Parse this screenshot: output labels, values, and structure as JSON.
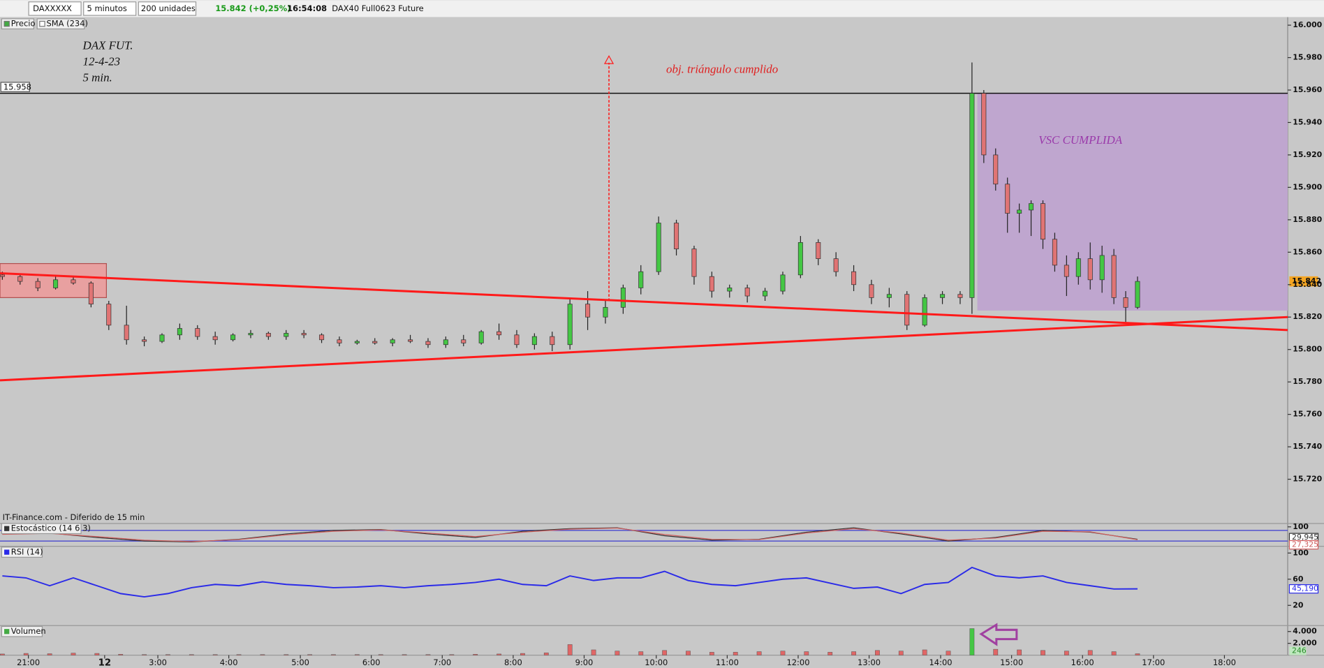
{
  "toolbar": {
    "symbol": "DAXXXXX",
    "interval": "5 minutos",
    "units": "200 unidades",
    "quote": "15.842 (+0,25%)",
    "time": "16:54:08",
    "instrument": "DAX40 Full0623 Future",
    "source": "IT-Finance.com - Diferido de 15 min"
  },
  "chart_data": [
    {
      "type": "candlestick",
      "legend": [
        "Precio",
        "SMA (234)"
      ],
      "annotations": {
        "label": [
          "DAX FUT.",
          "12-4-23",
          "5 min."
        ],
        "target": "obj. triángulo cumplido",
        "box": "VSC CUMPLIDA"
      },
      "x": [
        0,
        3,
        6,
        9,
        12,
        15,
        18,
        21,
        24,
        27,
        30,
        33,
        36,
        39,
        42,
        45,
        48,
        51,
        54,
        57,
        60,
        63,
        66,
        69,
        72,
        75,
        78,
        81,
        84,
        87,
        90,
        93,
        96,
        99,
        102,
        105,
        108,
        111,
        114,
        117,
        120,
        123,
        126,
        129,
        132,
        135,
        138,
        141,
        144,
        147,
        150,
        153,
        156,
        159,
        162,
        164,
        166,
        168,
        170,
        172,
        174,
        176,
        178,
        180,
        182,
        184,
        186,
        188,
        190,
        192
      ],
      "open": [
        15846,
        15845,
        15842,
        15838,
        15843,
        15841,
        15828,
        15815,
        15806,
        15805,
        15809,
        15813,
        15808,
        15806,
        15809,
        15810,
        15808,
        15810,
        15809,
        15806,
        15804,
        15805,
        15804,
        15806,
        15805,
        15803,
        15806,
        15804,
        15811,
        15809,
        15803,
        15808,
        15803,
        15828,
        15820,
        15826,
        15838,
        15848,
        15878,
        15862,
        15845,
        15836,
        15838,
        15833,
        15836,
        15846,
        15866,
        15856,
        15848,
        15840,
        15832,
        15834,
        15815,
        15832,
        15834,
        15832,
        15958,
        15920,
        15902,
        15884,
        15886,
        15890,
        15868,
        15852,
        15845,
        15856,
        15843,
        15858,
        15832,
        15826
      ],
      "high": [
        15848,
        15847,
        15844,
        15845,
        15845,
        15842,
        15830,
        15827,
        15808,
        15810,
        15816,
        15815,
        15811,
        15810,
        15812,
        15811,
        15812,
        15812,
        15810,
        15808,
        15806,
        15807,
        15807,
        15809,
        15807,
        15808,
        15809,
        15812,
        15816,
        15812,
        15810,
        15811,
        15832,
        15836,
        15830,
        15840,
        15852,
        15882,
        15880,
        15864,
        15848,
        15840,
        15840,
        15838,
        15848,
        15870,
        15868,
        15860,
        15852,
        15843,
        15838,
        15836,
        15834,
        15836,
        15836,
        15977,
        15960,
        15924,
        15906,
        15890,
        15892,
        15892,
        15872,
        15858,
        15860,
        15866,
        15864,
        15862,
        15836,
        15845
      ],
      "low": [
        15843,
        15840,
        15836,
        15837,
        15840,
        15826,
        15812,
        15803,
        15802,
        15804,
        15806,
        15806,
        15803,
        15805,
        15807,
        15806,
        15806,
        15807,
        15804,
        15802,
        15803,
        15803,
        15802,
        15804,
        15801,
        15801,
        15802,
        15803,
        15806,
        15801,
        15800,
        15799,
        15800,
        15812,
        15816,
        15822,
        15834,
        15846,
        15858,
        15840,
        15832,
        15832,
        15829,
        15830,
        15834,
        15844,
        15852,
        15845,
        15836,
        15828,
        15826,
        15812,
        15814,
        15828,
        15828,
        15822,
        15915,
        15898,
        15872,
        15872,
        15870,
        15862,
        15848,
        15833,
        15840,
        15837,
        15835,
        15828,
        15817,
        15825
      ],
      "close": [
        15845,
        15842,
        15838,
        15843,
        15841,
        15828,
        15815,
        15806,
        15805,
        15809,
        15813,
        15808,
        15806,
        15809,
        15810,
        15808,
        15810,
        15809,
        15806,
        15804,
        15805,
        15804,
        15806,
        15805,
        15803,
        15806,
        15804,
        15811,
        15809,
        15803,
        15808,
        15803,
        15828,
        15820,
        15826,
        15838,
        15848,
        15878,
        15862,
        15845,
        15836,
        15838,
        15833,
        15836,
        15846,
        15866,
        15856,
        15848,
        15840,
        15832,
        15834,
        15815,
        15832,
        15834,
        15832,
        15958,
        15920,
        15902,
        15884,
        15886,
        15890,
        15868,
        15852,
        15845,
        15856,
        15843,
        15858,
        15832,
        15826,
        15842
      ],
      "up_color": "#44c744",
      "down_color": "#e07474",
      "ylim": [
        15700,
        16005
      ],
      "yticks": [
        {
          "value": 16000,
          "label": "16.000"
        },
        {
          "value": 15980,
          "label": "15.980"
        },
        {
          "value": 15960,
          "label": "15.960"
        },
        {
          "value": 15940,
          "label": "15.940"
        },
        {
          "value": 15920,
          "label": "15.920"
        },
        {
          "value": 15900,
          "label": "15.900"
        },
        {
          "value": 15880,
          "label": "15.880"
        },
        {
          "value": 15860,
          "label": "15.860"
        },
        {
          "value": 15840,
          "label": "15.840"
        },
        {
          "value": 15820,
          "label": "15.820"
        },
        {
          "value": 15800,
          "label": "15.800"
        },
        {
          "value": 15780,
          "label": "15.780"
        },
        {
          "value": 15760,
          "label": "15.760"
        },
        {
          "value": 15740,
          "label": "15.740"
        },
        {
          "value": 15720,
          "label": "15.720"
        }
      ],
      "xlim": [
        -0.4,
        217.4
      ],
      "xticks": [
        {
          "value": 4.4,
          "label": "21:00"
        },
        {
          "value": 17.3,
          "label": "12"
        },
        {
          "value": 26.3,
          "label": "3:00"
        },
        {
          "value": 38.3,
          "label": "4:00"
        },
        {
          "value": 50.4,
          "label": "5:00"
        },
        {
          "value": 62.4,
          "label": "6:00"
        },
        {
          "value": 74.4,
          "label": "7:00"
        },
        {
          "value": 86.4,
          "label": "8:00"
        },
        {
          "value": 98.4,
          "label": "9:00"
        },
        {
          "value": 110.6,
          "label": "10:00"
        },
        {
          "value": 122.6,
          "label": "11:00"
        },
        {
          "value": 134.6,
          "label": "12:00"
        },
        {
          "value": 146.6,
          "label": "13:00"
        },
        {
          "value": 158.7,
          "label": "14:00"
        },
        {
          "value": 170.7,
          "label": "15:00"
        },
        {
          "value": 182.7,
          "label": "16:00"
        },
        {
          "value": 194.7,
          "label": "17:00"
        },
        {
          "value": 206.7,
          "label": "18:00"
        }
      ],
      "level": {
        "value": 15958,
        "label": "15.958"
      },
      "last_price": {
        "value": 15842,
        "label": "15.842"
      },
      "trendlines": [
        {
          "x": [
            -0.4,
            217.4
          ],
          "y": [
            15847,
            15812
          ],
          "color": "#ff1a1a"
        },
        {
          "x": [
            -0.4,
            217.4
          ],
          "y": [
            15781,
            15820
          ],
          "color": "#ff1a1a"
        }
      ],
      "boxes": [
        {
          "x": [
            -0.4,
            17.6
          ],
          "y": [
            15832,
            15853
          ],
          "color": "#e8a0a0"
        },
        {
          "x": [
            164.9,
            217.4
          ],
          "y": [
            15824,
            15958
          ],
          "color": "#bfa6cf"
        }
      ],
      "arrow": {
        "x": 102.6,
        "y": [
          15830,
          15981
        ],
        "color": "#ff1a1a"
      }
    },
    {
      "type": "line",
      "legend": "Estocástico (14 6 3)",
      "x": [
        0,
        8,
        16,
        24,
        32,
        40,
        48,
        56,
        64,
        72,
        80,
        88,
        96,
        104,
        112,
        120,
        128,
        136,
        144,
        152,
        160,
        168,
        176,
        184,
        192
      ],
      "series": [
        {
          "name": "%K",
          "color": "#333333",
          "values": [
            60,
            65,
            40,
            20,
            15,
            30,
            60,
            80,
            85,
            60,
            40,
            75,
            90,
            95,
            50,
            25,
            30,
            70,
            95,
            60,
            20,
            40,
            80,
            70,
            29.945
          ],
          "last_label": "29,945"
        },
        {
          "name": "%D",
          "color": "#d06060",
          "values": [
            58,
            63,
            45,
            25,
            17,
            28,
            55,
            75,
            83,
            65,
            45,
            70,
            87,
            93,
            57,
            30,
            28,
            65,
            90,
            65,
            25,
            37,
            75,
            72,
            27.325
          ],
          "last_label": "27,325"
        }
      ],
      "ylim": [
        0,
        100
      ],
      "yticks": [
        100
      ],
      "levels": [
        80,
        20
      ]
    },
    {
      "type": "line",
      "legend": "RSI (14)",
      "x": [
        0,
        4,
        8,
        12,
        16,
        20,
        24,
        28,
        32,
        36,
        40,
        44,
        48,
        52,
        56,
        60,
        64,
        68,
        72,
        76,
        80,
        84,
        88,
        92,
        96,
        100,
        104,
        108,
        112,
        116,
        120,
        124,
        128,
        132,
        136,
        140,
        144,
        148,
        152,
        156,
        160,
        164,
        168,
        172,
        176,
        180,
        184,
        188,
        192
      ],
      "series": [
        {
          "name": "RSI",
          "color": "#2a2ae8",
          "values": [
            65,
            62,
            50,
            62,
            50,
            38,
            33,
            38,
            47,
            52,
            50,
            56,
            52,
            50,
            47,
            48,
            50,
            47,
            50,
            52,
            55,
            60,
            52,
            50,
            65,
            58,
            62,
            62,
            72,
            58,
            52,
            50,
            55,
            60,
            62,
            54,
            46,
            48,
            38,
            52,
            55,
            78,
            65,
            62,
            65,
            55,
            50,
            45,
            45.19
          ],
          "last_label": "45,190"
        }
      ],
      "ylim": [
        0,
        100
      ],
      "yticks": [
        100,
        60,
        20
      ]
    },
    {
      "type": "bar",
      "legend": "Volumen",
      "x": [
        0,
        4,
        8,
        12,
        16,
        20,
        24,
        28,
        32,
        36,
        40,
        44,
        48,
        52,
        56,
        60,
        64,
        68,
        72,
        76,
        80,
        84,
        88,
        92,
        96,
        100,
        104,
        108,
        112,
        116,
        120,
        124,
        128,
        132,
        136,
        140,
        144,
        148,
        152,
        156,
        160,
        164,
        168,
        172,
        176,
        180,
        184,
        188,
        192
      ],
      "values": [
        200,
        300,
        250,
        350,
        300,
        150,
        100,
        100,
        100,
        100,
        100,
        100,
        100,
        100,
        100,
        100,
        100,
        100,
        100,
        100,
        150,
        200,
        300,
        400,
        1800,
        900,
        700,
        600,
        800,
        700,
        500,
        500,
        600,
        700,
        600,
        500,
        600,
        800,
        700,
        900,
        700,
        4500,
        1000,
        900,
        800,
        700,
        800,
        600,
        246
      ],
      "value_labels_last": "246",
      "color": "#e06666",
      "ylim": [
        0,
        5000
      ],
      "yticks": [
        {
          "value": 4000,
          "label": "4.000"
        },
        {
          "value": 2000,
          "label": "2.000"
        }
      ]
    }
  ]
}
